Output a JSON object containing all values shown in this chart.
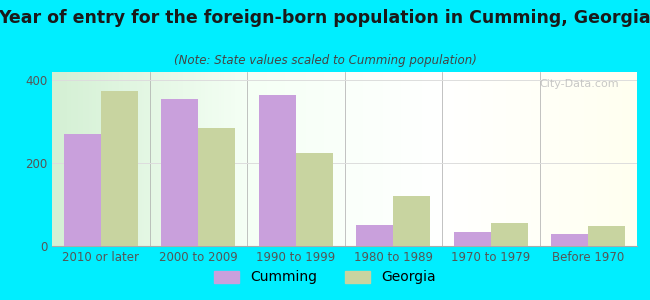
{
  "title": "Year of entry for the foreign-born population in Cumming, Georgia",
  "subtitle": "(Note: State values scaled to Cumming population)",
  "categories": [
    "2010 or later",
    "2000 to 2009",
    "1990 to 1999",
    "1980 to 1989",
    "1970 to 1979",
    "Before 1970"
  ],
  "cumming_values": [
    270,
    355,
    365,
    50,
    35,
    28
  ],
  "georgia_values": [
    375,
    285,
    225,
    120,
    55,
    48
  ],
  "cumming_color": "#c9a0dc",
  "georgia_color": "#c8d4a0",
  "ylim": [
    0,
    420
  ],
  "yticks": [
    0,
    200,
    400
  ],
  "bar_width": 0.38,
  "background_outer": "#00eeff",
  "grid_color": "#dddddd",
  "title_fontsize": 12.5,
  "subtitle_fontsize": 8.5,
  "tick_fontsize": 8.5,
  "legend_fontsize": 10,
  "watermark_text": "City-Data.com",
  "title_color": "#1a1a1a",
  "subtitle_color": "#444444",
  "tick_color": "#555555"
}
